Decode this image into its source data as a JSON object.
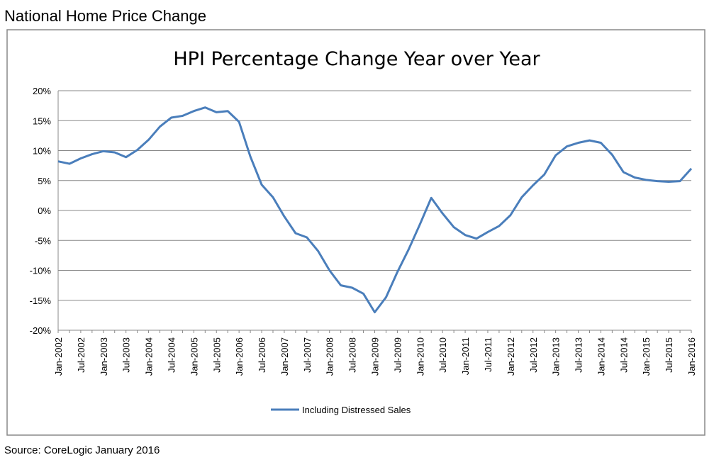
{
  "header": "National Home Price Change",
  "source": "Source: CoreLogic January 2016",
  "chart_data": {
    "type": "line",
    "title": "HPI Percentage Change Year over Year",
    "categories": [
      "Jan-2002",
      null,
      "Jul-2002",
      null,
      "Jan-2003",
      null,
      "Jul-2003",
      null,
      "Jan-2004",
      null,
      "Jul-2004",
      null,
      "Jan-2005",
      null,
      "Jul-2005",
      null,
      "Jan-2006",
      null,
      "Jul-2006",
      null,
      "Jan-2007",
      null,
      "Jul-2007",
      null,
      "Jan-2008",
      null,
      "Jul-2008",
      null,
      "Jan-2009",
      null,
      "Jul-2009",
      null,
      "Jan-2010",
      null,
      "Jul-2010",
      null,
      "Jan-2011",
      null,
      "Jul-2011",
      null,
      "Jan-2012",
      null,
      "Jul-2012",
      null,
      "Jan-2013",
      null,
      "Jul-2013",
      null,
      "Jan-2014",
      null,
      "Jul-2014",
      null,
      "Jan-2015",
      null,
      "Jul-2015",
      null,
      "Jan-2016"
    ],
    "series": [
      {
        "name": "Including Distressed Sales",
        "color": "#4a7ebb",
        "values": [
          8.2,
          7.8,
          8.7,
          9.4,
          9.9,
          9.7,
          8.9,
          10.1,
          11.8,
          14.0,
          15.5,
          15.8,
          16.6,
          17.2,
          16.4,
          16.6,
          14.8,
          9.0,
          4.3,
          2.2,
          -1.0,
          -3.8,
          -4.5,
          -6.8,
          -10.0,
          -12.5,
          -12.9,
          -13.9,
          -17.0,
          -14.5,
          -10.3,
          -6.5,
          -2.3,
          2.1,
          -0.5,
          -2.8,
          -4.1,
          -4.7,
          -3.6,
          -2.6,
          -0.8,
          2.2,
          4.2,
          6.0,
          9.2,
          10.7,
          11.3,
          11.7,
          11.3,
          9.3,
          6.4,
          5.5,
          5.1,
          4.9,
          4.8,
          4.9,
          7.0
        ]
      }
    ],
    "ylim": [
      -20,
      20
    ],
    "yticks": [
      {
        "value": -20,
        "label": "-20%"
      },
      {
        "value": -15,
        "label": "-15%"
      },
      {
        "value": -10,
        "label": "-10%"
      },
      {
        "value": -5,
        "label": "-5%"
      },
      {
        "value": 0,
        "label": "0%"
      },
      {
        "value": 5,
        "label": "5%"
      },
      {
        "value": 10,
        "label": "10%"
      },
      {
        "value": 15,
        "label": "15%"
      },
      {
        "value": 20,
        "label": "20%"
      }
    ],
    "grid": true,
    "legend": "bottom"
  }
}
